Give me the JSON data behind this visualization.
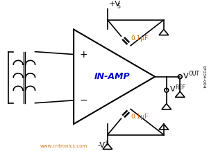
{
  "bg_color": "#ffffff",
  "text_color_blue": "#0000cc",
  "text_color_orange": "#cc6600",
  "label_inamp": "IN-AMP",
  "label_vout": "V",
  "label_vout_sub": "OUT",
  "label_vref": "V",
  "label_vref_sub": "REF",
  "label_vs_pos": "+V",
  "label_vs_pos_sub": "S",
  "label_vs_neg": "-V",
  "label_vs_neg_sub": "S",
  "label_cap": "0.1μF",
  "label_watermark": "www.cntronics.com",
  "label_code": "07034-004",
  "figsize": [
    3.01,
    2.18
  ],
  "dpi": 100
}
